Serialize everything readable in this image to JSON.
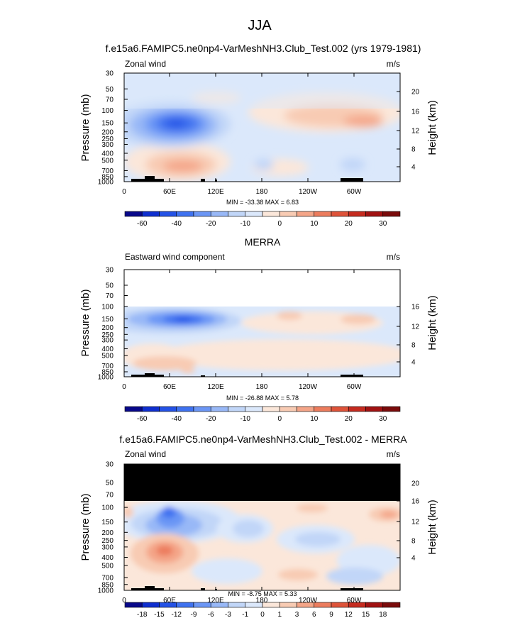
{
  "title": "JJA",
  "colors": {
    "cool": [
      "#08088a",
      "#0f2fcf",
      "#2452e6",
      "#3f72f0",
      "#6b96f5",
      "#98b8f7",
      "#c1d6f8",
      "#dbe8fb"
    ],
    "warm": [
      "#fbe7da",
      "#f8cbb3",
      "#f4a588",
      "#ec7c5d",
      "#de5339",
      "#c52b1f",
      "#a11212",
      "#7a0b0b"
    ],
    "background": "#ffffff",
    "topography": "#000000",
    "masked": "#000000"
  },
  "chart_data": [
    {
      "type": "heatmap",
      "name": "model-zonal-wind",
      "title": "f.e15a6.FAMIPC5.ne0np4-VarMeshNH3.Club_Test.002 (yrs 1979-1981)",
      "left_label": "Zonal wind",
      "units": "m/s",
      "ylabel": "Pressure (mb)",
      "ylabel_right": "Height (km)",
      "pressure_ticks": [
        "30",
        "50",
        "70",
        "100",
        "150",
        "200",
        "250",
        "300",
        "400",
        "500",
        "700",
        "850",
        "1000"
      ],
      "height_ticks": [
        "20",
        "16",
        "12",
        "8",
        "4"
      ],
      "lon_ticks": [
        "0",
        "60E",
        "120E",
        "180",
        "120W",
        "60W"
      ],
      "stats": "MIN = -33.38   MAX =   6.83",
      "colorbar_labels": [
        "-60",
        "-40",
        "-20",
        "-10",
        "0",
        "10",
        "20",
        "30"
      ],
      "min": -33.38,
      "max": 6.83
    },
    {
      "type": "heatmap",
      "name": "merra-eastward-wind",
      "title": "MERRA",
      "left_label": "Eastward wind component",
      "units": "m/s",
      "ylabel": "Pressure (mb)",
      "ylabel_right": "Height (km)",
      "pressure_ticks": [
        "30",
        "50",
        "70",
        "100",
        "150",
        "200",
        "250",
        "300",
        "400",
        "500",
        "700",
        "850",
        "1000"
      ],
      "height_ticks": [
        "16",
        "12",
        "8",
        "4"
      ],
      "lon_ticks": [
        "0",
        "60E",
        "120E",
        "180",
        "120W",
        "60W"
      ],
      "stats": "MIN = -26.88   MAX =   5.78",
      "colorbar_labels": [
        "-60",
        "-40",
        "-20",
        "-10",
        "0",
        "10",
        "20",
        "30"
      ],
      "min": -26.88,
      "max": 5.78
    },
    {
      "type": "heatmap",
      "name": "difference",
      "title": "f.e15a6.FAMIPC5.ne0np4-VarMeshNH3.Club_Test.002 - MERRA",
      "left_label": "Zonal wind",
      "units": "m/s",
      "ylabel": "Pressure (mb)",
      "ylabel_right": "Height (km)",
      "pressure_ticks": [
        "30",
        "50",
        "70",
        "100",
        "150",
        "200",
        "250",
        "300",
        "400",
        "500",
        "700",
        "850",
        "1000"
      ],
      "height_ticks": [
        "20",
        "16",
        "12",
        "8",
        "4"
      ],
      "lon_ticks": [
        "0",
        "60E",
        "120E",
        "180",
        "120W",
        "60W"
      ],
      "stats": "MIN =  -8.75   MAX =   5.33",
      "colorbar_labels": [
        "-18",
        "-15",
        "-12",
        "-9",
        "-6",
        "-3",
        "-1",
        "0",
        "1",
        "3",
        "6",
        "9",
        "12",
        "15",
        "18"
      ],
      "min": -8.75,
      "max": 5.33
    }
  ]
}
